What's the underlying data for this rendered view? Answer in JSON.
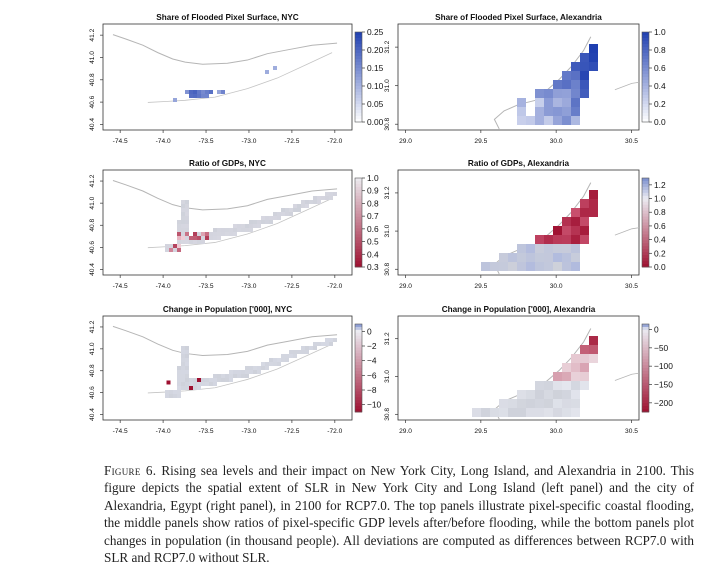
{
  "figure": {
    "label": "Figure 6.",
    "caption": "Rising sea levels and their impact on New York City, Long Island, and Alexandria in 2100. This figure depicts the spatial extent of SLR in New York City and Long Island (left panel) and the city of Alexandria, Egypt (right panel), in 2100 for RCP7.0. The top panels illustrate pixel-specific coastal flooding, the middle panels show ratios of pixel-specific GDP levels after/before flooding, while the bottom panels plot changes in population (in thousand people). All deviations are computed as differences between RCP7.0 with SLR and RCP7.0 without SLR."
  },
  "colors": {
    "blue_dark": "#1f3fb0",
    "red_dark": "#9e1030",
    "land_grey": "#cdd0da",
    "outline_grey": "#b4b4b4"
  },
  "chart_data": [
    {
      "type": "heatmap",
      "title": "Share of Flooded Pixel Surface, NYC",
      "x_ticks": [
        "-74.5",
        "-74.0",
        "-73.5",
        "-73.0",
        "-72.5",
        "-72.0"
      ],
      "y_ticks": [
        "40.4",
        "40.6",
        "40.8",
        "41.0",
        "41.2"
      ],
      "xlim": [
        -74.7,
        -71.8
      ],
      "ylim": [
        40.35,
        41.3
      ],
      "legend_ticks": [
        "0.25",
        "0.20",
        "0.15",
        "0.10",
        "0.05",
        "0.00"
      ],
      "legend_range": [
        0,
        0.25
      ],
      "colormap": "white-blue"
    },
    {
      "type": "heatmap",
      "title": "Share of Flooded Pixel Surface, Alexandria",
      "x_ticks": [
        "29.0",
        "29.5",
        "30.0",
        "30.5"
      ],
      "y_ticks": [
        "30.8",
        "31.0",
        "31.2"
      ],
      "xlim": [
        28.95,
        30.55
      ],
      "ylim": [
        30.77,
        31.32
      ],
      "legend_ticks": [
        "1.0",
        "0.8",
        "0.6",
        "0.4",
        "0.2",
        "0.0"
      ],
      "legend_range": [
        0,
        1
      ],
      "colormap": "white-blue"
    },
    {
      "type": "heatmap",
      "title": "Ratio of GDPs, NYC",
      "x_ticks": [
        "-74.5",
        "-74.0",
        "-73.5",
        "-73.0",
        "-72.5",
        "-72.0"
      ],
      "y_ticks": [
        "40.4",
        "40.6",
        "40.8",
        "41.0",
        "41.2"
      ],
      "xlim": [
        -74.7,
        -71.8
      ],
      "ylim": [
        40.35,
        41.3
      ],
      "legend_ticks": [
        "1.0",
        "0.9",
        "0.8",
        "0.7",
        "0.6",
        "0.5",
        "0.4",
        "0.3"
      ],
      "legend_range": [
        0.3,
        1.0
      ],
      "colormap": "red-white"
    },
    {
      "type": "heatmap",
      "title": "Ratio of GDPs, Alexandria",
      "x_ticks": [
        "29.0",
        "29.5",
        "30.0",
        "30.5"
      ],
      "y_ticks": [
        "30.8",
        "31.0",
        "31.2"
      ],
      "xlim": [
        28.95,
        30.55
      ],
      "ylim": [
        30.77,
        31.32
      ],
      "legend_ticks": [
        "1.2",
        "1.0",
        "0.8",
        "0.6",
        "0.4",
        "0.2",
        "0.0"
      ],
      "legend_range": [
        0,
        1.3
      ],
      "colormap": "red-white-blue"
    },
    {
      "type": "heatmap",
      "title": "Change in Population ['000], NYC",
      "x_ticks": [
        "-74.5",
        "-74.0",
        "-73.5",
        "-73.0",
        "-72.5",
        "-72.0"
      ],
      "y_ticks": [
        "40.4",
        "40.6",
        "40.8",
        "41.0",
        "41.2"
      ],
      "xlim": [
        -74.7,
        -71.8
      ],
      "ylim": [
        40.35,
        41.3
      ],
      "legend_ticks": [
        "0",
        "−2",
        "−4",
        "−6",
        "−8",
        "−10"
      ],
      "legend_range": [
        -11,
        1
      ],
      "colormap": "red-white-blue"
    },
    {
      "type": "heatmap",
      "title": "Change in Population ['000], Alexandria",
      "x_ticks": [
        "29.0",
        "29.5",
        "30.0",
        "30.5"
      ],
      "y_ticks": [
        "30.8",
        "31.0",
        "31.2"
      ],
      "xlim": [
        28.95,
        30.55
      ],
      "ylim": [
        30.77,
        31.32
      ],
      "legend_ticks": [
        "0",
        "−50",
        "−100",
        "−150",
        "−200"
      ],
      "legend_range": [
        -225,
        15
      ],
      "colormap": "red-white-blue"
    }
  ]
}
